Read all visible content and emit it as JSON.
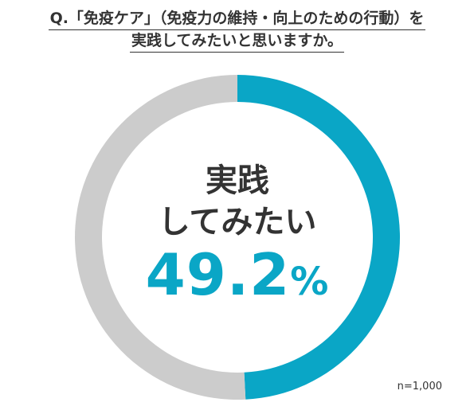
{
  "chart_data": {
    "type": "pie",
    "style": "donut",
    "title_lines": [
      "Q.「免疫ケア」（免疫力の維持・向上のための行動）を",
      "実践してみたいと思いますか。"
    ],
    "slices": [
      {
        "label": "実践してみたい",
        "value": 49.2,
        "color": "#0aa6c6"
      },
      {
        "label": "",
        "value": 50.8,
        "color": "#cccccc"
      }
    ],
    "center_label_lines": [
      "実践",
      "してみたい"
    ],
    "center_value": "49.2",
    "center_unit": "%",
    "note": "n=1,000"
  }
}
